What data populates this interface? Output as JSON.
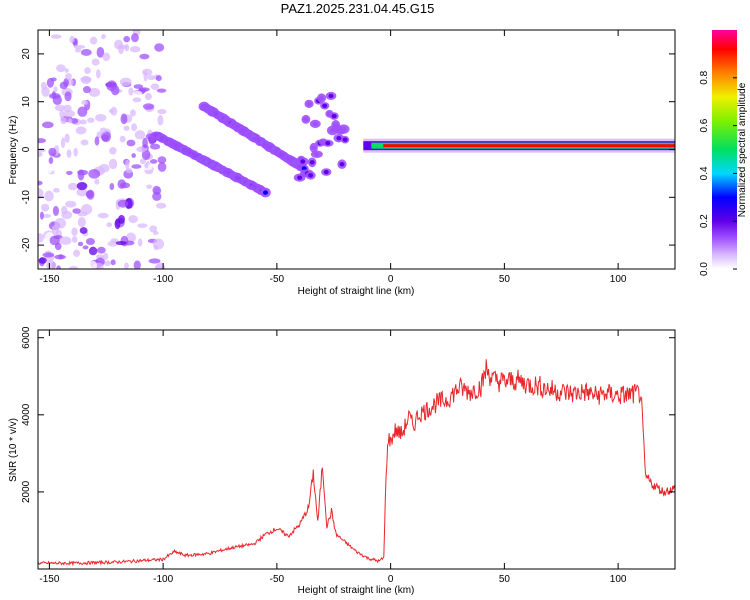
{
  "title": "PAZ1.2025.231.04.45.G15",
  "colors": {
    "snr_line": "#e8262b",
    "spectrogram_cmap": [
      "#ffffff",
      "#d9b8ff",
      "#a050ff",
      "#6000e8",
      "#0000ff",
      "#00d8ff",
      "#00e060",
      "#f0f000",
      "#ff8000",
      "#ff0000",
      "#ff00a0"
    ]
  },
  "chart_data": [
    {
      "type": "heatmap",
      "title": "PAZ1.2025.231.04.45.G15",
      "xlabel": "Height of straight line (km)",
      "ylabel": "Frequency (Hz)",
      "xlim": [
        -155,
        125
      ],
      "ylim": [
        -25,
        25
      ],
      "xticks": [
        -150,
        -100,
        -50,
        0,
        50,
        100
      ],
      "yticks": [
        -20,
        -10,
        0,
        10,
        20
      ],
      "colorbar": {
        "label": "Normalized spectral amplitude",
        "range": [
          0,
          1
        ],
        "ticks": [
          0.0,
          0.2,
          0.4,
          0.6,
          0.8
        ],
        "tick_labels": [
          "0.0",
          "0.2",
          "0.4",
          "0.6",
          "0.8"
        ]
      },
      "features": [
        {
          "x": [
            -155,
            -100
          ],
          "freq": [
            -25,
            25
          ],
          "amplitude": 0.15,
          "kind": "diffuse noise"
        },
        {
          "x": [
            -103,
            -55
          ],
          "freq_start": 3,
          "freq_end": -9,
          "amplitude": 0.45,
          "kind": "descending track"
        },
        {
          "x": [
            -82,
            -38
          ],
          "freq_start": 9,
          "freq_end": -4,
          "amplitude": 0.45,
          "kind": "descending track"
        },
        {
          "x": [
            -40,
            -20
          ],
          "freq_start": 2,
          "freq_end": 4,
          "amplitude": 0.3,
          "kind": "scatter"
        },
        {
          "x": [
            -12,
            125
          ],
          "freq_start": 0.8,
          "freq_end": 0.8,
          "amplitude": 0.9,
          "kind": "carrier line"
        }
      ]
    },
    {
      "type": "line",
      "xlabel": "Height of straight line (km)",
      "ylabel": "SNR (10 * v/v)",
      "xlim": [
        -155,
        125
      ],
      "ylim": [
        0,
        6200
      ],
      "xticks": [
        -150,
        -100,
        -50,
        0,
        50,
        100
      ],
      "yticks": [
        2000,
        4000,
        6000
      ],
      "series": [
        {
          "x": [
            -155,
            -140,
            -120,
            -100,
            -95,
            -90,
            -80,
            -70,
            -60,
            -55,
            -50,
            -45,
            -40,
            -36,
            -34,
            -32,
            -30,
            -28,
            -26,
            -24,
            -20,
            -15,
            -10,
            -5,
            -3,
            -2,
            -1,
            0,
            2,
            5,
            8,
            10,
            12,
            15,
            20,
            25,
            30,
            35,
            40,
            42,
            45,
            50,
            55,
            60,
            65,
            70,
            75,
            80,
            85,
            90,
            95,
            100,
            105,
            109,
            110,
            112,
            115,
            120,
            125
          ],
          "y": [
            150,
            150,
            180,
            250,
            450,
            350,
            400,
            550,
            650,
            900,
            1050,
            850,
            1150,
            1600,
            2500,
            1200,
            2700,
            1100,
            1500,
            900,
            700,
            450,
            280,
            200,
            300,
            2500,
            3400,
            3300,
            3600,
            3500,
            3950,
            3700,
            4000,
            4100,
            4300,
            4400,
            4700,
            4600,
            4750,
            5200,
            4900,
            4850,
            4900,
            4800,
            4750,
            4650,
            4600,
            4550,
            4600,
            4500,
            4550,
            4500,
            4520,
            4550,
            4550,
            2400,
            2200,
            2000,
            2100
          ]
        }
      ]
    }
  ]
}
